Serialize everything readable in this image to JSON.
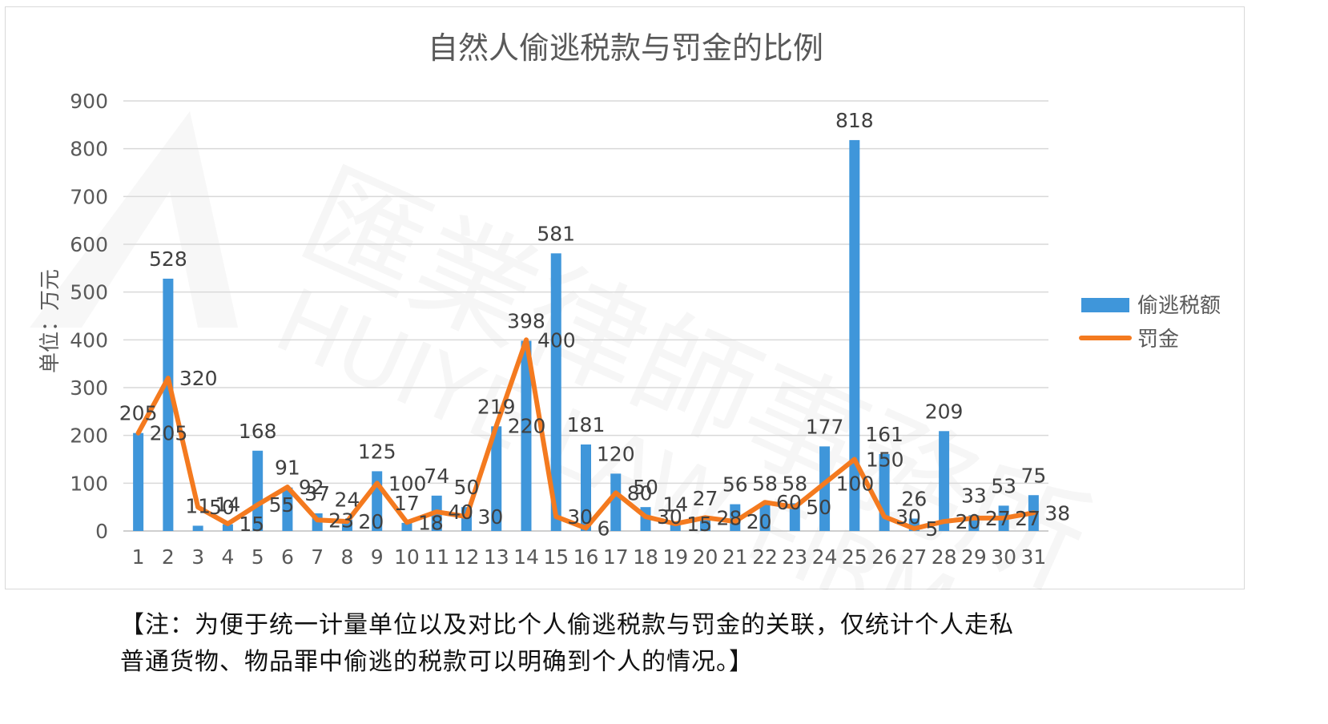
{
  "chart_data": {
    "type": "bar",
    "title": "自然人偷逃税款与罚金的比例",
    "ylabel": "单位：万元",
    "ylim": [
      0,
      900
    ],
    "yticks": [
      0,
      100,
      200,
      300,
      400,
      500,
      600,
      700,
      800,
      900
    ],
    "grid": true,
    "legend_position": "right",
    "categories": [
      "1",
      "2",
      "3",
      "4",
      "5",
      "6",
      "7",
      "8",
      "9",
      "10",
      "11",
      "12",
      "13",
      "14",
      "15",
      "16",
      "17",
      "18",
      "19",
      "20",
      "21",
      "22",
      "23",
      "24",
      "25",
      "26",
      "27",
      "28",
      "29",
      "30",
      "31"
    ],
    "series": [
      {
        "name": "偷逃税额",
        "type": "bar",
        "color": "#3F96DA",
        "values": [
          205,
          528,
          11,
          14,
          168,
          91,
          37,
          24,
          125,
          17,
          74,
          50,
          219,
          398,
          581,
          181,
          120,
          50,
          14,
          27,
          56,
          58,
          58,
          177,
          818,
          161,
          26,
          209,
          33,
          53,
          75
        ]
      },
      {
        "name": "罚金",
        "type": "line",
        "color": "#F47A1F",
        "values": [
          205,
          320,
          50,
          15,
          55,
          92,
          23,
          20,
          100,
          18,
          40,
          30,
          220,
          400,
          30,
          6,
          80,
          30,
          15,
          28,
          20,
          60,
          50,
          100,
          150,
          30,
          5,
          20,
          27,
          27,
          38
        ]
      }
    ]
  },
  "watermark": {
    "text": "匯業律師事務所",
    "subtext": "HUIYE LAW FIRM"
  },
  "note": {
    "line1": "【注：为便于统一计量单位以及对比个人偷逃税款与罚金的关联，仅统计个人走私",
    "line2": "普通货物、物品罪中偷逃的税款可以明确到个人的情况。】"
  }
}
